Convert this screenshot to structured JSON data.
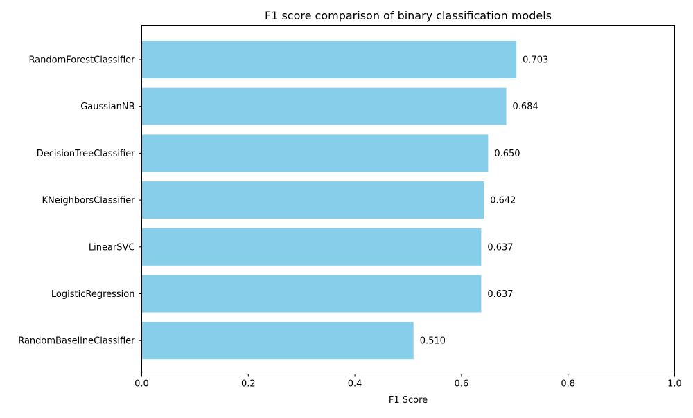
{
  "chart_data": {
    "type": "bar",
    "orientation": "horizontal",
    "title": "F1 score comparison of binary classification models",
    "xlabel": "F1 Score",
    "ylabel": "",
    "xlim": [
      0.0,
      1.0
    ],
    "xticks": [
      "0.0",
      "0.2",
      "0.4",
      "0.6",
      "0.8",
      "1.0"
    ],
    "grid": false,
    "legend": "none",
    "bar_color": "#87CEEB",
    "categories": [
      "RandomForestClassifier",
      "GaussianNB",
      "DecisionTreeClassifier",
      "KNeighborsClassifier",
      "LinearSVC",
      "LogisticRegression",
      "RandomBaselineClassifier"
    ],
    "values": [
      0.703,
      0.684,
      0.65,
      0.642,
      0.637,
      0.637,
      0.51
    ],
    "value_labels": [
      "0.703",
      "0.684",
      "0.650",
      "0.642",
      "0.637",
      "0.637",
      "0.510"
    ]
  }
}
